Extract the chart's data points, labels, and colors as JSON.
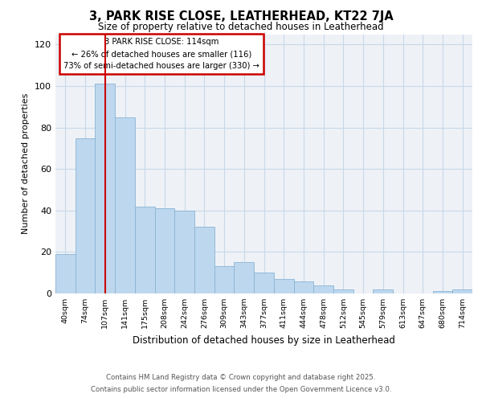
{
  "title": "3, PARK RISE CLOSE, LEATHERHEAD, KT22 7JA",
  "subtitle": "Size of property relative to detached houses in Leatherhead",
  "xlabel": "Distribution of detached houses by size in Leatherhead",
  "ylabel": "Number of detached properties",
  "categories": [
    "40sqm",
    "74sqm",
    "107sqm",
    "141sqm",
    "175sqm",
    "208sqm",
    "242sqm",
    "276sqm",
    "309sqm",
    "343sqm",
    "377sqm",
    "411sqm",
    "444sqm",
    "478sqm",
    "512sqm",
    "545sqm",
    "579sqm",
    "613sqm",
    "647sqm",
    "680sqm",
    "714sqm"
  ],
  "values": [
    19,
    75,
    101,
    85,
    42,
    41,
    40,
    32,
    13,
    15,
    10,
    7,
    6,
    4,
    2,
    0,
    2,
    0,
    0,
    1,
    2
  ],
  "bar_color": "#bdd7ee",
  "bar_edge_color": "#8ab4d4",
  "bar_width": 1.0,
  "vline_x_index": 2,
  "vline_color": "#cc0000",
  "annotation_line1": "3 PARK RISE CLOSE: 114sqm",
  "annotation_line2": "← 26% of detached houses are smaller (116)",
  "annotation_line3": "73% of semi-detached houses are larger (330) →",
  "ylim": [
    0,
    125
  ],
  "yticks": [
    0,
    20,
    40,
    60,
    80,
    100,
    120
  ],
  "grid_color": "#c8d8e8",
  "background_color": "#eef2f7",
  "footer_line1": "Contains HM Land Registry data © Crown copyright and database right 2025.",
  "footer_line2": "Contains public sector information licensed under the Open Government Licence v3.0."
}
